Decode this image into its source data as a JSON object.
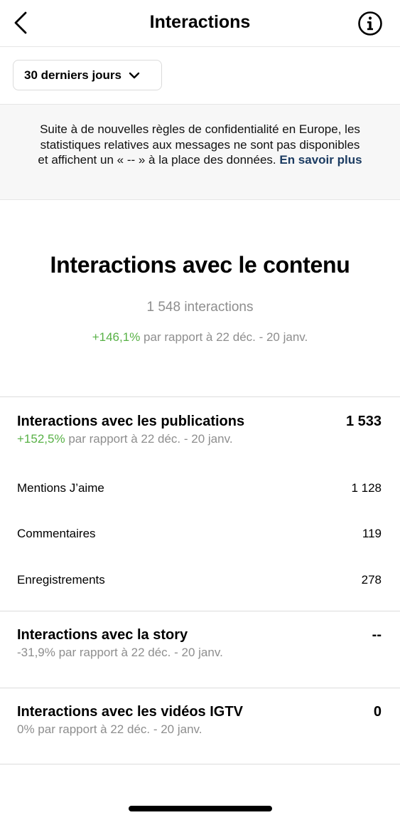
{
  "header": {
    "title": "Interactions",
    "back_icon": "chevron-left-icon",
    "info_icon": "info-circle-icon"
  },
  "filter": {
    "selected": "30 derniers jours",
    "icon": "chevron-down-icon"
  },
  "notice": {
    "text": "Suite à de nouvelles règles de confidentialité en Europe, les statistiques relatives aux messages ne sont pas disponibles et affichent un « -- » à la place des données.",
    "link": "En savoir plus",
    "link_color": "#1b3b61"
  },
  "summary": {
    "title": "Interactions avec le contenu",
    "total": "1 548 interactions",
    "change": "+146,1%",
    "comparison": "par rapport à 22 déc. - 20 janv."
  },
  "publications": {
    "title": "Interactions avec les publications",
    "value": "1 533",
    "change": "+152,5%",
    "comparison": "par rapport à 22 déc. - 20 janv.",
    "metrics": [
      {
        "label": "Mentions J’aime",
        "value": "1 128"
      },
      {
        "label": "Commentaires",
        "value": "119"
      },
      {
        "label": "Enregistrements",
        "value": "278"
      }
    ]
  },
  "story": {
    "title": "Interactions avec la story",
    "value": "--",
    "subtitle": "-31,9% par rapport à 22 déc. - 20 janv."
  },
  "igtv": {
    "title": "Interactions avec les vidéos IGTV",
    "value": "0",
    "subtitle": "0% par rapport à 22 déc. - 20 janv."
  },
  "colors": {
    "positive": "#58b146",
    "muted": "#8e8e8e",
    "notice_bg": "#f7f7f7"
  }
}
